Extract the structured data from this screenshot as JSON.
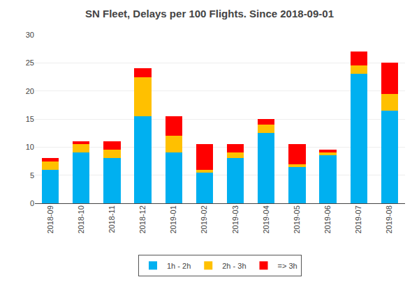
{
  "chart_data": {
    "type": "bar",
    "stacked": true,
    "title": "SN Fleet, Delays per 100 Flights. Since 2018-09-01",
    "categories": [
      "2018-09",
      "2018-10",
      "2018-11",
      "2018-12",
      "2019-01",
      "2019-02",
      "2019-03",
      "2019-04",
      "2019-05",
      "2019-06",
      "2019-07",
      "2019-08"
    ],
    "series": [
      {
        "name": "1h - 2h",
        "color": "#00B0F0",
        "values": [
          6.0,
          9.0,
          8.0,
          15.5,
          9.0,
          5.5,
          8.0,
          12.5,
          6.5,
          8.5,
          23.0,
          16.5
        ]
      },
      {
        "name": "2h - 3h",
        "color": "#FFC000",
        "values": [
          1.5,
          1.5,
          1.5,
          7.0,
          3.0,
          0.5,
          1.0,
          1.5,
          0.5,
          0.5,
          1.5,
          3.0
        ]
      },
      {
        "name": "=> 3h",
        "color": "#FF0000",
        "values": [
          0.5,
          0.5,
          1.5,
          1.5,
          3.5,
          4.5,
          1.5,
          1.0,
          3.5,
          0.5,
          2.5,
          5.5
        ]
      }
    ],
    "ylim": [
      0,
      30
    ],
    "yticks": [
      0,
      5,
      10,
      15,
      20,
      25,
      30
    ],
    "grid": true,
    "legend": "bottom"
  }
}
